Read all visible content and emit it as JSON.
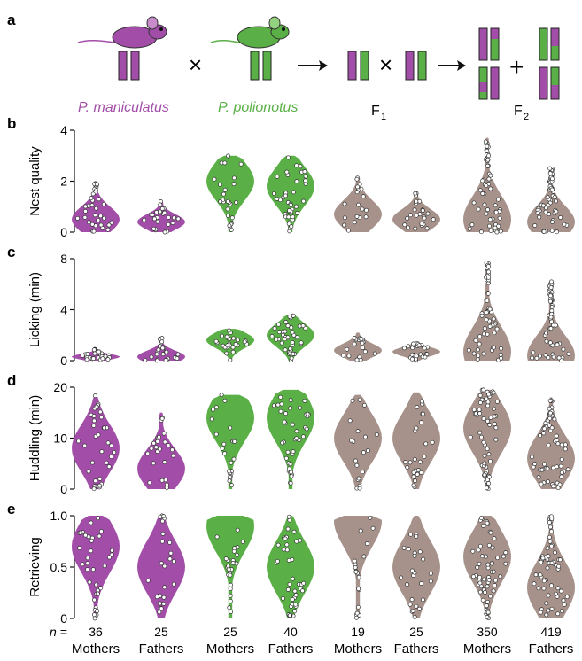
{
  "header": {
    "panel_letter": "a",
    "species_a": "P. maniculatus",
    "species_b": "P. polionotus",
    "f1_label": "F",
    "f1_sub": "1",
    "f2_label": "F",
    "f2_sub": "2"
  },
  "colors": {
    "maniculatus": "#a24ea8",
    "polionotus": "#5ab046",
    "hybrid": "#a6928a"
  },
  "n_prefix": "n =",
  "chart_data": [
    {
      "type": "violin",
      "panel": "b",
      "ylabel": "Nest quality",
      "ylim": [
        0,
        4
      ],
      "yticks": [
        "0",
        "2",
        "4"
      ],
      "groups": [
        {
          "label": "Mothers",
          "n": "36",
          "color": "maniculatus",
          "max": 2.0,
          "median": 0.5
        },
        {
          "label": "Fathers",
          "n": "25",
          "color": "maniculatus",
          "max": 1.2,
          "median": 0.4
        },
        {
          "label": "Mothers",
          "n": "25",
          "color": "polionotus",
          "max": 3.0,
          "median": 2.0
        },
        {
          "label": "Fathers",
          "n": "40",
          "color": "polionotus",
          "max": 3.0,
          "median": 1.8
        },
        {
          "label": "Mothers",
          "n": "19",
          "color": "hybrid",
          "max": 2.2,
          "median": 0.7
        },
        {
          "label": "Fathers",
          "n": "25",
          "color": "hybrid",
          "max": 1.6,
          "median": 0.5
        },
        {
          "label": "Mothers",
          "n": "350",
          "color": "hybrid",
          "max": 3.7,
          "median": 0.5
        },
        {
          "label": "Fathers",
          "n": "419",
          "color": "hybrid",
          "max": 2.5,
          "median": 0.4
        }
      ]
    },
    {
      "type": "violin",
      "panel": "c",
      "ylabel": "Licking (min)",
      "ylim": [
        0,
        8
      ],
      "yticks": [
        "0",
        "4",
        "8"
      ],
      "groups": [
        {
          "label": "Mothers",
          "n": "36",
          "color": "maniculatus",
          "max": 0.9,
          "median": 0.3
        },
        {
          "label": "Fathers",
          "n": "25",
          "color": "maniculatus",
          "max": 1.9,
          "median": 0.3
        },
        {
          "label": "Mothers",
          "n": "25",
          "color": "polionotus",
          "max": 2.5,
          "median": 1.6
        },
        {
          "label": "Fathers",
          "n": "40",
          "color": "polionotus",
          "max": 3.6,
          "median": 2.0
        },
        {
          "label": "Mothers",
          "n": "19",
          "color": "hybrid",
          "max": 2.2,
          "median": 0.8
        },
        {
          "label": "Fathers",
          "n": "25",
          "color": "hybrid",
          "max": 1.4,
          "median": 0.7
        },
        {
          "label": "Mothers",
          "n": "350",
          "color": "hybrid",
          "max": 7.7,
          "median": 0.7
        },
        {
          "label": "Fathers",
          "n": "419",
          "color": "hybrid",
          "max": 6.2,
          "median": 0.4
        }
      ]
    },
    {
      "type": "violin",
      "panel": "d",
      "ylabel": "Huddling (min)",
      "ylim": [
        0,
        20
      ],
      "yticks": [
        "0",
        "10",
        "20"
      ],
      "groups": [
        {
          "label": "Mothers",
          "n": "36",
          "color": "maniculatus",
          "max": 18.5,
          "median": 8
        },
        {
          "label": "Fathers",
          "n": "25",
          "color": "maniculatus",
          "max": 15,
          "median": 4
        },
        {
          "label": "Mothers",
          "n": "25",
          "color": "polionotus",
          "max": 18.5,
          "median": 14
        },
        {
          "label": "Fathers",
          "n": "40",
          "color": "polionotus",
          "max": 19.5,
          "median": 14
        },
        {
          "label": "Mothers",
          "n": "19",
          "color": "hybrid",
          "max": 18.5,
          "median": 10
        },
        {
          "label": "Fathers",
          "n": "25",
          "color": "hybrid",
          "max": 19,
          "median": 10
        },
        {
          "label": "Mothers",
          "n": "350",
          "color": "hybrid",
          "max": 19.5,
          "median": 12
        },
        {
          "label": "Fathers",
          "n": "419",
          "color": "hybrid",
          "max": 18,
          "median": 6
        }
      ]
    },
    {
      "type": "violin",
      "panel": "e",
      "ylabel": "Retrieving",
      "ylim": [
        0,
        1
      ],
      "yticks": [
        "0",
        "0.5",
        "1.0"
      ],
      "groups": [
        {
          "label": "Mothers",
          "n": "36",
          "color": "maniculatus",
          "max": 1.0,
          "median": 0.7
        },
        {
          "label": "Fathers",
          "n": "25",
          "color": "maniculatus",
          "max": 1.0,
          "median": 0.5
        },
        {
          "label": "Mothers",
          "n": "25",
          "color": "polionotus",
          "max": 1.0,
          "median": 0.9
        },
        {
          "label": "Fathers",
          "n": "40",
          "color": "polionotus",
          "max": 1.0,
          "median": 0.5
        },
        {
          "label": "Mothers",
          "n": "19",
          "color": "hybrid",
          "max": 1.0,
          "median": 0.95
        },
        {
          "label": "Fathers",
          "n": "25",
          "color": "hybrid",
          "max": 1.0,
          "median": 0.5
        },
        {
          "label": "Mothers",
          "n": "350",
          "color": "hybrid",
          "max": 1.0,
          "median": 0.6
        },
        {
          "label": "Fathers",
          "n": "419",
          "color": "hybrid",
          "max": 1.0,
          "median": 0.3
        }
      ]
    }
  ]
}
